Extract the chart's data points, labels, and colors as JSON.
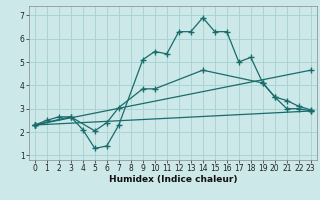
{
  "title": "",
  "xlabel": "Humidex (Indice chaleur)",
  "background_color": "#cce8e8",
  "grid_color": "#aad4d4",
  "line_color": "#1a6b6b",
  "xlim": [
    -0.5,
    23.5
  ],
  "ylim": [
    0.8,
    7.4
  ],
  "xticks": [
    0,
    1,
    2,
    3,
    4,
    5,
    6,
    7,
    8,
    9,
    10,
    11,
    12,
    13,
    14,
    15,
    16,
    17,
    18,
    19,
    20,
    21,
    22,
    23
  ],
  "yticks": [
    1,
    2,
    3,
    4,
    5,
    6,
    7
  ],
  "line1": {
    "x": [
      0,
      1,
      2,
      3,
      4,
      5,
      6,
      7,
      9,
      10,
      11,
      12,
      13,
      14,
      15,
      16,
      17,
      18,
      19,
      20,
      21,
      22,
      23
    ],
    "y": [
      2.3,
      2.5,
      2.65,
      2.65,
      2.1,
      1.3,
      1.4,
      2.3,
      5.1,
      5.45,
      5.35,
      6.3,
      6.3,
      6.9,
      6.3,
      6.3,
      5.0,
      5.2,
      4.1,
      3.5,
      3.0,
      3.0,
      2.9
    ]
  },
  "line2": {
    "x": [
      0,
      3,
      5,
      6,
      7,
      9,
      10,
      14,
      19,
      20,
      21,
      22,
      23
    ],
    "y": [
      2.3,
      2.65,
      2.05,
      2.4,
      3.05,
      3.85,
      3.85,
      4.65,
      4.1,
      3.5,
      3.35,
      3.1,
      2.95
    ]
  },
  "line3": {
    "x": [
      0,
      23
    ],
    "y": [
      2.3,
      4.65
    ]
  },
  "line4": {
    "x": [
      0,
      23
    ],
    "y": [
      2.3,
      2.9
    ]
  }
}
